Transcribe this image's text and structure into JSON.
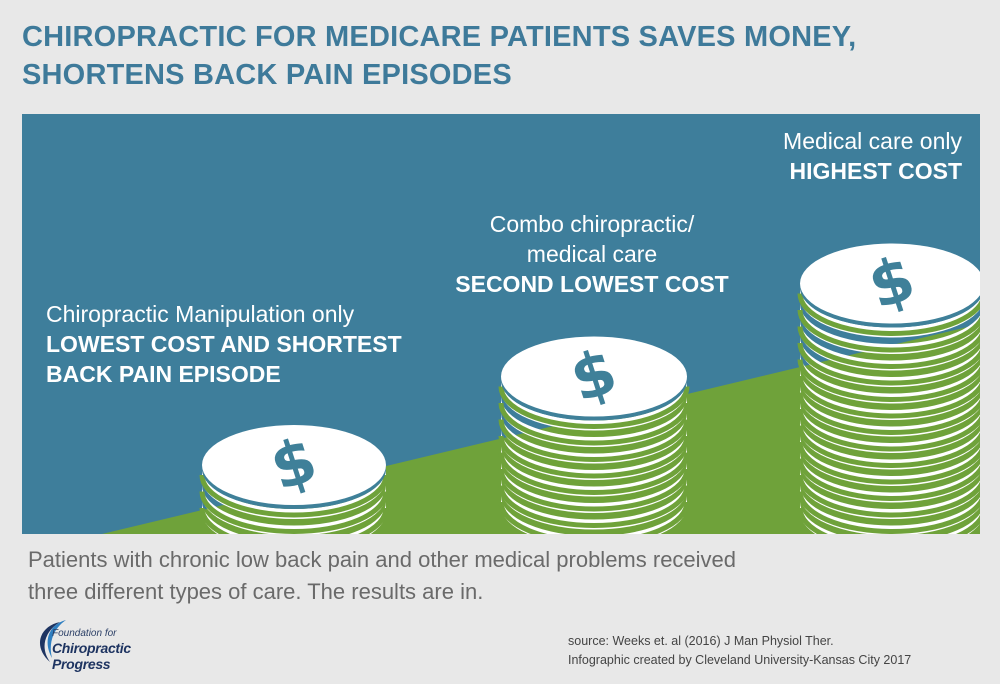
{
  "title": {
    "line1": "CHIROPRACTIC FOR MEDICARE PATIENTS SAVES MONEY,",
    "line2": "SHORTENS BACK PAIN EPISODES"
  },
  "stacks": [
    {
      "light": "Chiropractic Manipulation only",
      "strong1": "LOWEST COST AND SHORTEST",
      "strong2": "BACK PAIN EPISODE",
      "coins": 3
    },
    {
      "light1": "Combo chiropractic/",
      "light2": "medical care",
      "strong": "SECOND LOWEST COST",
      "coins": 8
    },
    {
      "light": "Medical care only",
      "strong": "HIGHEST COST",
      "coins": 14
    }
  ],
  "coin_symbol": "$",
  "description": {
    "line1": "Patients with chronic low back pain and other medical problems received",
    "line2": "three different types of care. The results are in."
  },
  "logo": {
    "line1": "Foundation for",
    "line2": "Chiropractic Progress"
  },
  "source": {
    "line1": "source: Weeks et. al (2016) J Man Physiol Ther.",
    "line2": "Infographic created by Cleveland University-Kansas City 2017"
  },
  "colors": {
    "title": "#3e7a9a",
    "panel": "#3e7e9b",
    "green": "#6fa23a",
    "coin": "#ffffff",
    "coin_edge": "#3f8099",
    "desc": "#6a6a6a"
  }
}
